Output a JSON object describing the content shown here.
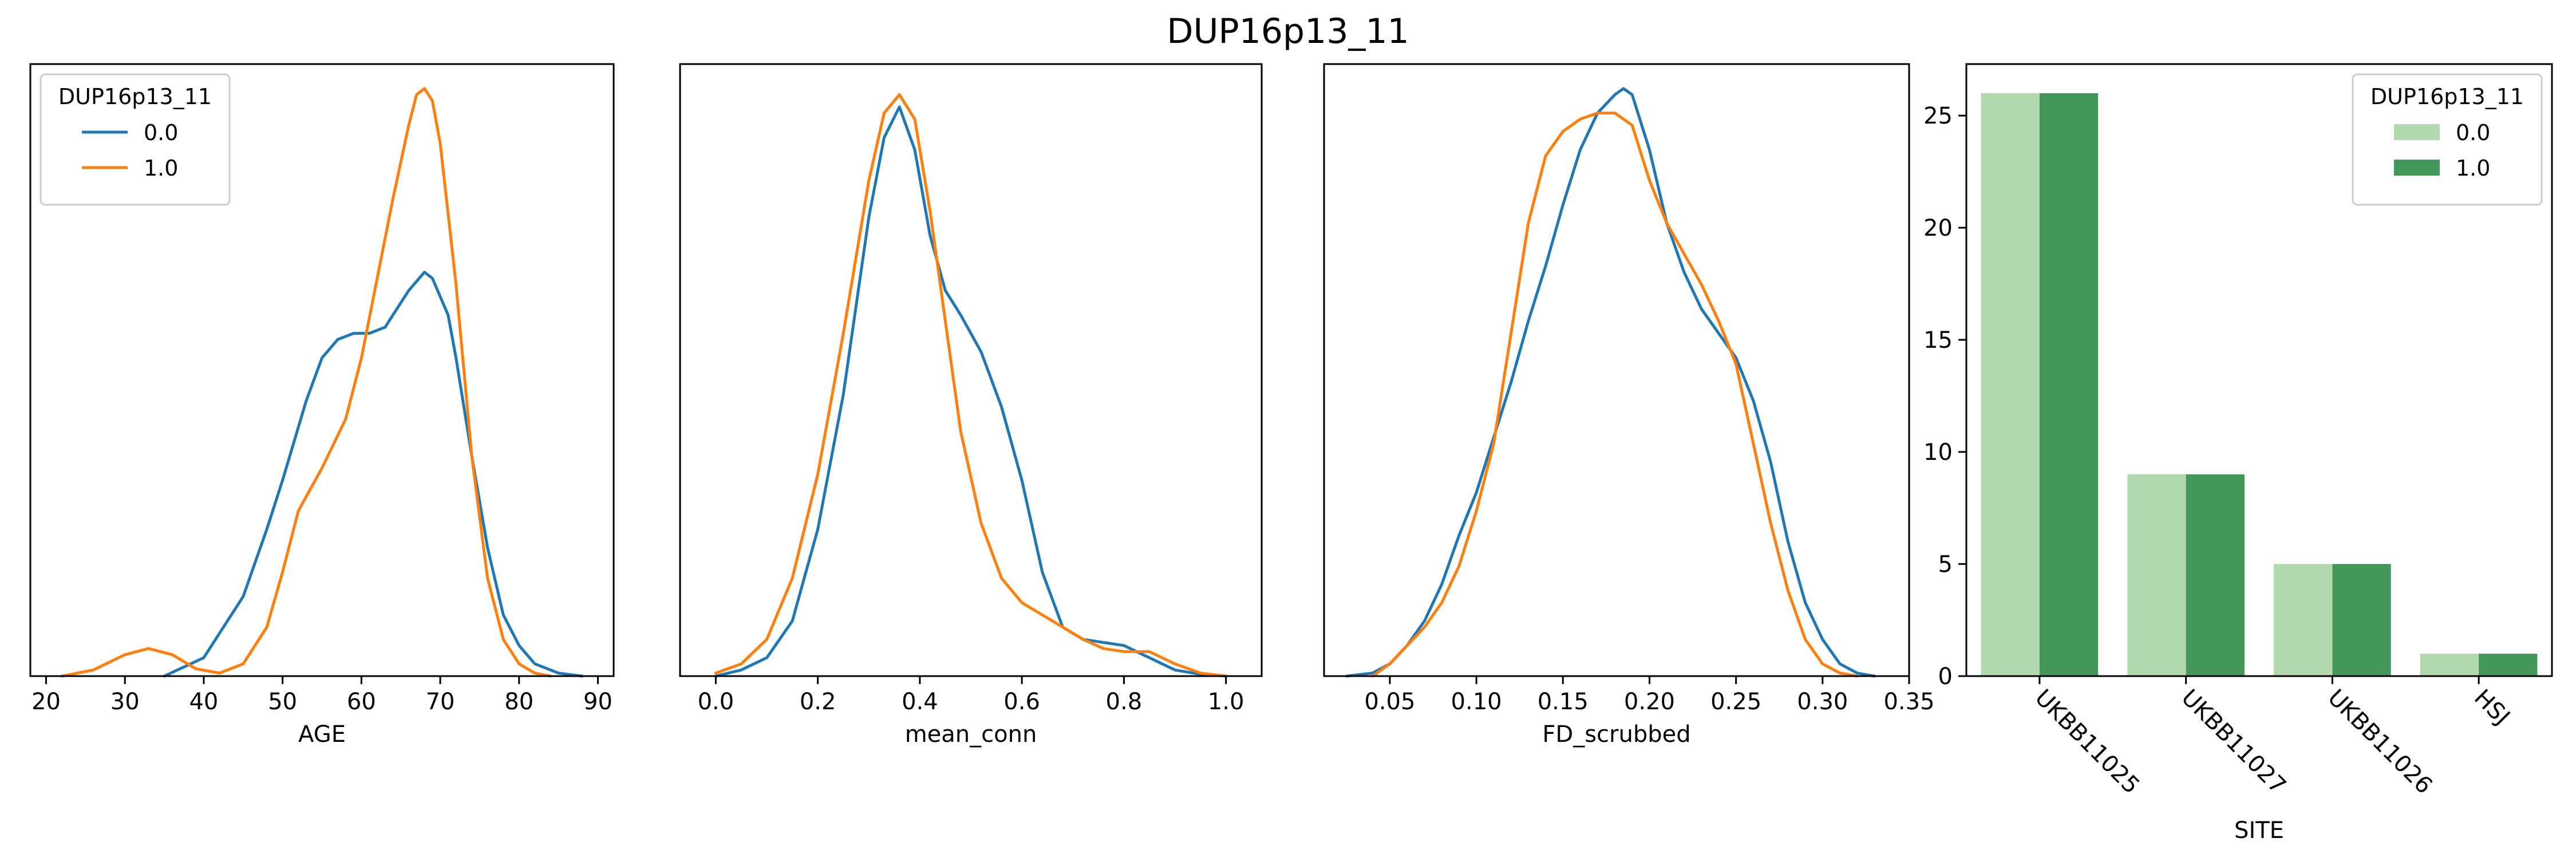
{
  "figure": {
    "title": "DUP16p13_11"
  },
  "chart_data": [
    {
      "type": "line",
      "subtype": "kde",
      "xlabel": "AGE",
      "xlim": [
        18,
        92
      ],
      "ylim": [
        0,
        1
      ],
      "x_ticks": [
        20,
        30,
        40,
        50,
        60,
        70,
        80,
        90
      ],
      "y_ticks_visible": false,
      "legend": {
        "title": "DUP16p13_11",
        "placement": "upper left"
      },
      "series": [
        {
          "name": "0.0",
          "color": "#1f77b4",
          "x": [
            35,
            40,
            45,
            48,
            50,
            53,
            55,
            57,
            59,
            61,
            63,
            64,
            66,
            68,
            69,
            71,
            72,
            74,
            76,
            78,
            80,
            82,
            85,
            88
          ],
          "y": [
            0.0,
            0.03,
            0.13,
            0.24,
            0.32,
            0.45,
            0.52,
            0.55,
            0.56,
            0.56,
            0.57,
            0.59,
            0.63,
            0.66,
            0.65,
            0.59,
            0.52,
            0.36,
            0.21,
            0.1,
            0.05,
            0.02,
            0.005,
            0.0
          ]
        },
        {
          "name": "1.0",
          "color": "#ff7f0e",
          "x": [
            22,
            26,
            30,
            33,
            36,
            39,
            42,
            45,
            48,
            50,
            52,
            55,
            58,
            60,
            62,
            64,
            66,
            67,
            68,
            69,
            70,
            72,
            74,
            76,
            78,
            80,
            82,
            84
          ],
          "y": [
            0.0,
            0.01,
            0.035,
            0.045,
            0.035,
            0.012,
            0.005,
            0.02,
            0.08,
            0.17,
            0.27,
            0.34,
            0.42,
            0.52,
            0.65,
            0.78,
            0.9,
            0.95,
            0.96,
            0.94,
            0.87,
            0.64,
            0.36,
            0.16,
            0.06,
            0.02,
            0.005,
            0.0
          ]
        }
      ]
    },
    {
      "type": "line",
      "subtype": "kde",
      "xlabel": "mean_conn",
      "xlim": [
        -0.07,
        1.07
      ],
      "ylim": [
        0,
        1
      ],
      "x_ticks": [
        "0.0",
        "0.2",
        "0.4",
        "0.6",
        "0.8",
        "1.0"
      ],
      "y_ticks_visible": false,
      "series": [
        {
          "name": "0.0",
          "color": "#1f77b4",
          "x": [
            0.0,
            0.05,
            0.1,
            0.15,
            0.2,
            0.25,
            0.3,
            0.33,
            0.36,
            0.39,
            0.42,
            0.45,
            0.48,
            0.52,
            0.56,
            0.6,
            0.64,
            0.68,
            0.72,
            0.76,
            0.8,
            0.85,
            0.9,
            0.95,
            1.0
          ],
          "y": [
            0.0,
            0.01,
            0.03,
            0.09,
            0.24,
            0.46,
            0.75,
            0.88,
            0.93,
            0.86,
            0.72,
            0.63,
            0.59,
            0.53,
            0.44,
            0.32,
            0.17,
            0.08,
            0.06,
            0.055,
            0.05,
            0.03,
            0.01,
            0.003,
            0.0
          ]
        },
        {
          "name": "1.0",
          "color": "#ff7f0e",
          "x": [
            0.0,
            0.05,
            0.1,
            0.15,
            0.2,
            0.25,
            0.3,
            0.33,
            0.36,
            0.39,
            0.42,
            0.45,
            0.48,
            0.52,
            0.56,
            0.6,
            0.64,
            0.68,
            0.72,
            0.76,
            0.8,
            0.85,
            0.9,
            0.95,
            1.0
          ],
          "y": [
            0.005,
            0.02,
            0.06,
            0.16,
            0.33,
            0.56,
            0.81,
            0.92,
            0.95,
            0.91,
            0.76,
            0.58,
            0.4,
            0.25,
            0.16,
            0.12,
            0.1,
            0.08,
            0.06,
            0.045,
            0.04,
            0.04,
            0.02,
            0.005,
            0.0
          ]
        }
      ]
    },
    {
      "type": "line",
      "subtype": "kde",
      "xlabel": "FD_scrubbed",
      "xlim": [
        0.012,
        0.35
      ],
      "ylim": [
        0,
        1
      ],
      "x_ticks": [
        "0.05",
        "0.10",
        "0.15",
        "0.20",
        "0.25",
        "0.30",
        "0.35"
      ],
      "y_ticks_visible": false,
      "series": [
        {
          "name": "0.0",
          "color": "#1f77b4",
          "x": [
            0.025,
            0.04,
            0.05,
            0.06,
            0.07,
            0.08,
            0.09,
            0.1,
            0.11,
            0.12,
            0.13,
            0.14,
            0.15,
            0.16,
            0.17,
            0.18,
            0.185,
            0.19,
            0.2,
            0.21,
            0.22,
            0.23,
            0.24,
            0.25,
            0.26,
            0.27,
            0.28,
            0.29,
            0.3,
            0.31,
            0.32,
            0.33
          ],
          "y": [
            0.0,
            0.005,
            0.02,
            0.05,
            0.09,
            0.15,
            0.23,
            0.3,
            0.39,
            0.48,
            0.58,
            0.67,
            0.77,
            0.86,
            0.92,
            0.95,
            0.96,
            0.95,
            0.86,
            0.74,
            0.66,
            0.6,
            0.56,
            0.52,
            0.45,
            0.35,
            0.22,
            0.12,
            0.06,
            0.02,
            0.005,
            0.0
          ]
        },
        {
          "name": "1.0",
          "color": "#ff7f0e",
          "x": [
            0.04,
            0.05,
            0.06,
            0.07,
            0.08,
            0.09,
            0.1,
            0.11,
            0.12,
            0.13,
            0.14,
            0.15,
            0.16,
            0.17,
            0.18,
            0.19,
            0.2,
            0.21,
            0.22,
            0.23,
            0.24,
            0.25,
            0.26,
            0.27,
            0.28,
            0.29,
            0.3,
            0.31,
            0.32
          ],
          "y": [
            0.0,
            0.02,
            0.05,
            0.08,
            0.12,
            0.18,
            0.27,
            0.38,
            0.56,
            0.74,
            0.85,
            0.89,
            0.91,
            0.92,
            0.92,
            0.9,
            0.81,
            0.74,
            0.69,
            0.64,
            0.58,
            0.51,
            0.38,
            0.25,
            0.14,
            0.06,
            0.02,
            0.005,
            0.0
          ]
        }
      ]
    },
    {
      "type": "bar",
      "xlabel": "SITE",
      "categories": [
        "UKBB11025",
        "UKBB11027",
        "UKBB11026",
        "HSJ"
      ],
      "ylim": [
        0,
        27.3
      ],
      "y_ticks": [
        0,
        5,
        10,
        15,
        20,
        25
      ],
      "legend": {
        "title": "DUP16p13_11",
        "placement": "upper right"
      },
      "series": [
        {
          "name": "0.0",
          "color": "#b2d8ae",
          "values": [
            26,
            9,
            5,
            1
          ]
        },
        {
          "name": "1.0",
          "color": "#43975a",
          "values": [
            26,
            9,
            5,
            1
          ]
        }
      ]
    }
  ]
}
